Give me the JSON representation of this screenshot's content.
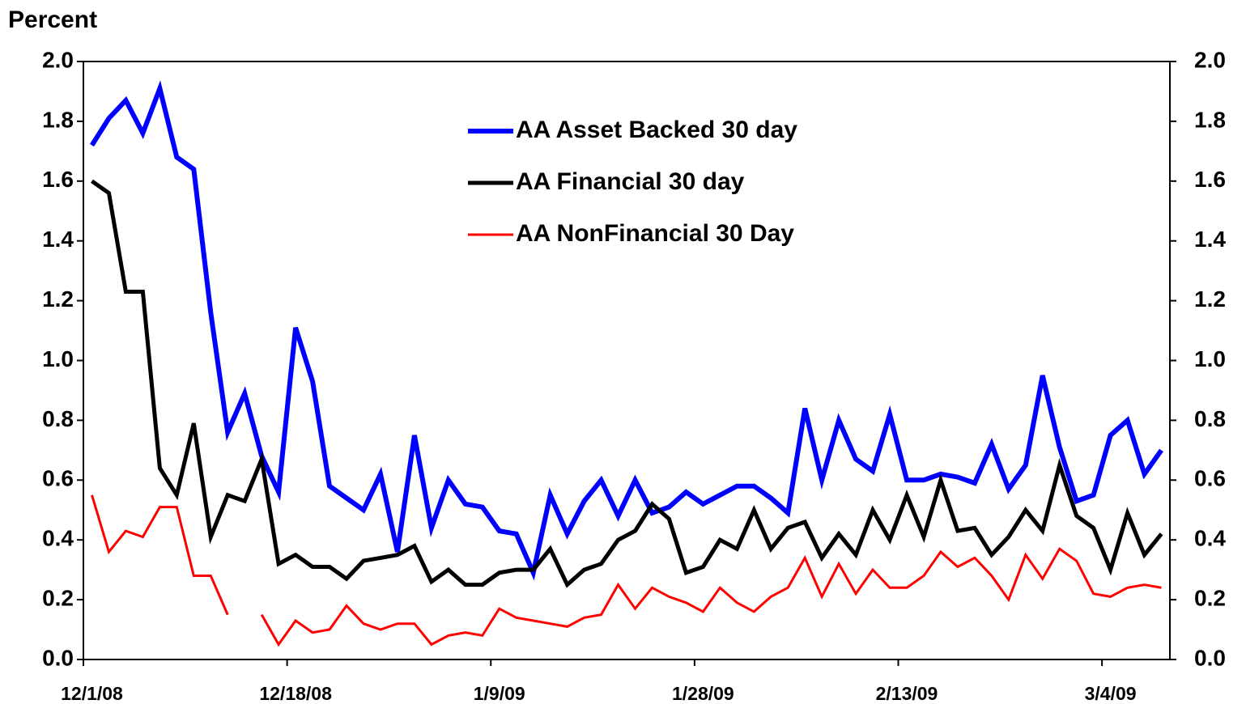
{
  "chart_data": {
    "type": "line",
    "y_label": "Percent",
    "categories": [
      "12/1/08",
      null,
      null,
      null,
      null,
      null,
      null,
      null,
      null,
      null,
      null,
      null,
      "12/18/08",
      null,
      null,
      null,
      null,
      null,
      null,
      null,
      null,
      null,
      null,
      null,
      "1/9/09",
      null,
      null,
      null,
      null,
      null,
      null,
      null,
      null,
      null,
      null,
      null,
      "1/28/09",
      null,
      null,
      null,
      null,
      null,
      null,
      null,
      null,
      null,
      null,
      null,
      "2/13/09",
      null,
      null,
      null,
      null,
      null,
      null,
      null,
      null,
      null,
      null,
      null,
      "3/4/09",
      null,
      null,
      null
    ],
    "series": [
      {
        "name": "AA Asset Backed 30 day",
        "color": "#0000ff",
        "values": [
          1.72,
          1.81,
          1.87,
          1.76,
          1.91,
          1.68,
          1.64,
          1.16,
          0.76,
          0.89,
          0.68,
          0.56,
          1.11,
          0.93,
          0.58,
          0.54,
          0.5,
          0.62,
          0.36,
          0.75,
          0.44,
          0.6,
          0.52,
          0.51,
          0.43,
          0.42,
          0.29,
          0.55,
          0.42,
          0.53,
          0.6,
          0.48,
          0.6,
          0.49,
          0.51,
          0.56,
          0.52,
          0.55,
          0.58,
          0.58,
          0.54,
          0.49,
          0.84,
          0.6,
          0.8,
          0.67,
          0.63,
          0.82,
          0.6,
          0.6,
          0.62,
          0.61,
          0.59,
          0.72,
          0.57,
          0.65,
          0.95,
          0.71,
          0.53,
          0.55,
          0.75,
          0.8,
          0.62,
          0.7
        ]
      },
      {
        "name": "AA Financial 30 day",
        "color": "#000000",
        "values": [
          1.6,
          1.56,
          1.23,
          1.23,
          0.64,
          0.55,
          0.79,
          0.41,
          0.55,
          0.53,
          0.67,
          0.32,
          0.35,
          0.31,
          0.31,
          0.27,
          0.33,
          0.34,
          0.35,
          0.38,
          0.26,
          0.3,
          0.25,
          0.25,
          0.29,
          0.3,
          0.3,
          0.37,
          0.25,
          0.3,
          0.32,
          0.4,
          0.43,
          0.52,
          0.47,
          0.29,
          0.31,
          0.4,
          0.37,
          0.5,
          0.37,
          0.44,
          0.46,
          0.34,
          0.42,
          0.35,
          0.5,
          0.4,
          0.55,
          0.41,
          0.6,
          0.43,
          0.44,
          0.35,
          0.41,
          0.5,
          0.43,
          0.65,
          0.48,
          0.44,
          0.3,
          0.49,
          0.35,
          0.42
        ]
      },
      {
        "name": "AA NonFinancial 30 Day",
        "color": "#ff0000",
        "values": [
          0.55,
          0.36,
          0.43,
          0.41,
          0.51,
          0.51,
          0.28,
          0.28,
          0.15,
          null,
          0.15,
          0.05,
          0.13,
          0.09,
          0.1,
          0.18,
          0.12,
          0.1,
          0.12,
          0.12,
          0.05,
          0.08,
          0.09,
          0.08,
          0.17,
          0.14,
          0.13,
          0.12,
          0.11,
          0.14,
          0.15,
          0.25,
          0.17,
          0.24,
          0.21,
          0.19,
          0.16,
          0.24,
          0.19,
          0.16,
          0.21,
          0.24,
          0.34,
          0.21,
          0.32,
          0.22,
          0.3,
          0.24,
          0.24,
          0.28,
          0.36,
          0.31,
          0.34,
          0.28,
          0.2,
          0.35,
          0.27,
          0.37,
          0.33,
          0.22,
          0.21,
          0.24,
          0.25,
          0.24
        ]
      }
    ],
    "ylim": [
      0,
      2
    ],
    "yticks": [
      {
        "value": 0,
        "label": "0.0"
      },
      0.2,
      0.4,
      0.6,
      0.8,
      {
        "value": 1,
        "label": "1.0"
      },
      1.2,
      1.4,
      1.6,
      1.8,
      {
        "value": 2,
        "label": "2.0"
      }
    ],
    "y2lim": [
      0,
      2
    ],
    "y2ticks": [
      {
        "value": 0,
        "label": "0.0"
      },
      0.2,
      0.4,
      0.6,
      0.8,
      {
        "value": 1,
        "label": "1.0"
      },
      1.2,
      1.4,
      1.6,
      1.8,
      {
        "value": 2,
        "label": "2.0"
      }
    ],
    "legend": "top-center"
  }
}
